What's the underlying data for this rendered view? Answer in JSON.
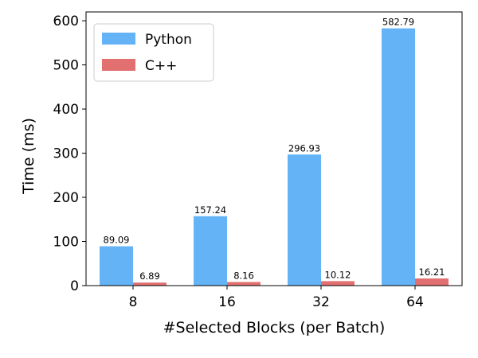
{
  "chart_data": {
    "type": "bar",
    "title": "",
    "xlabel": "#Selected Blocks (per Batch)",
    "ylabel": "Time (ms)",
    "categories": [
      "8",
      "16",
      "32",
      "64"
    ],
    "ylim": [
      0,
      620
    ],
    "yticks": [
      0,
      100,
      200,
      300,
      400,
      500,
      600
    ],
    "grid": false,
    "legend_position": "top-left",
    "series": [
      {
        "name": "Python",
        "color": "#63b3f6",
        "values": [
          89.09,
          157.24,
          296.93,
          582.79
        ],
        "labels": [
          "89.09",
          "157.24",
          "296.93",
          "582.79"
        ]
      },
      {
        "name": "C++",
        "color": "#e37070",
        "values": [
          6.89,
          8.16,
          10.12,
          16.21
        ],
        "labels": [
          "6.89",
          "8.16",
          "10.12",
          "16.21"
        ]
      }
    ]
  }
}
